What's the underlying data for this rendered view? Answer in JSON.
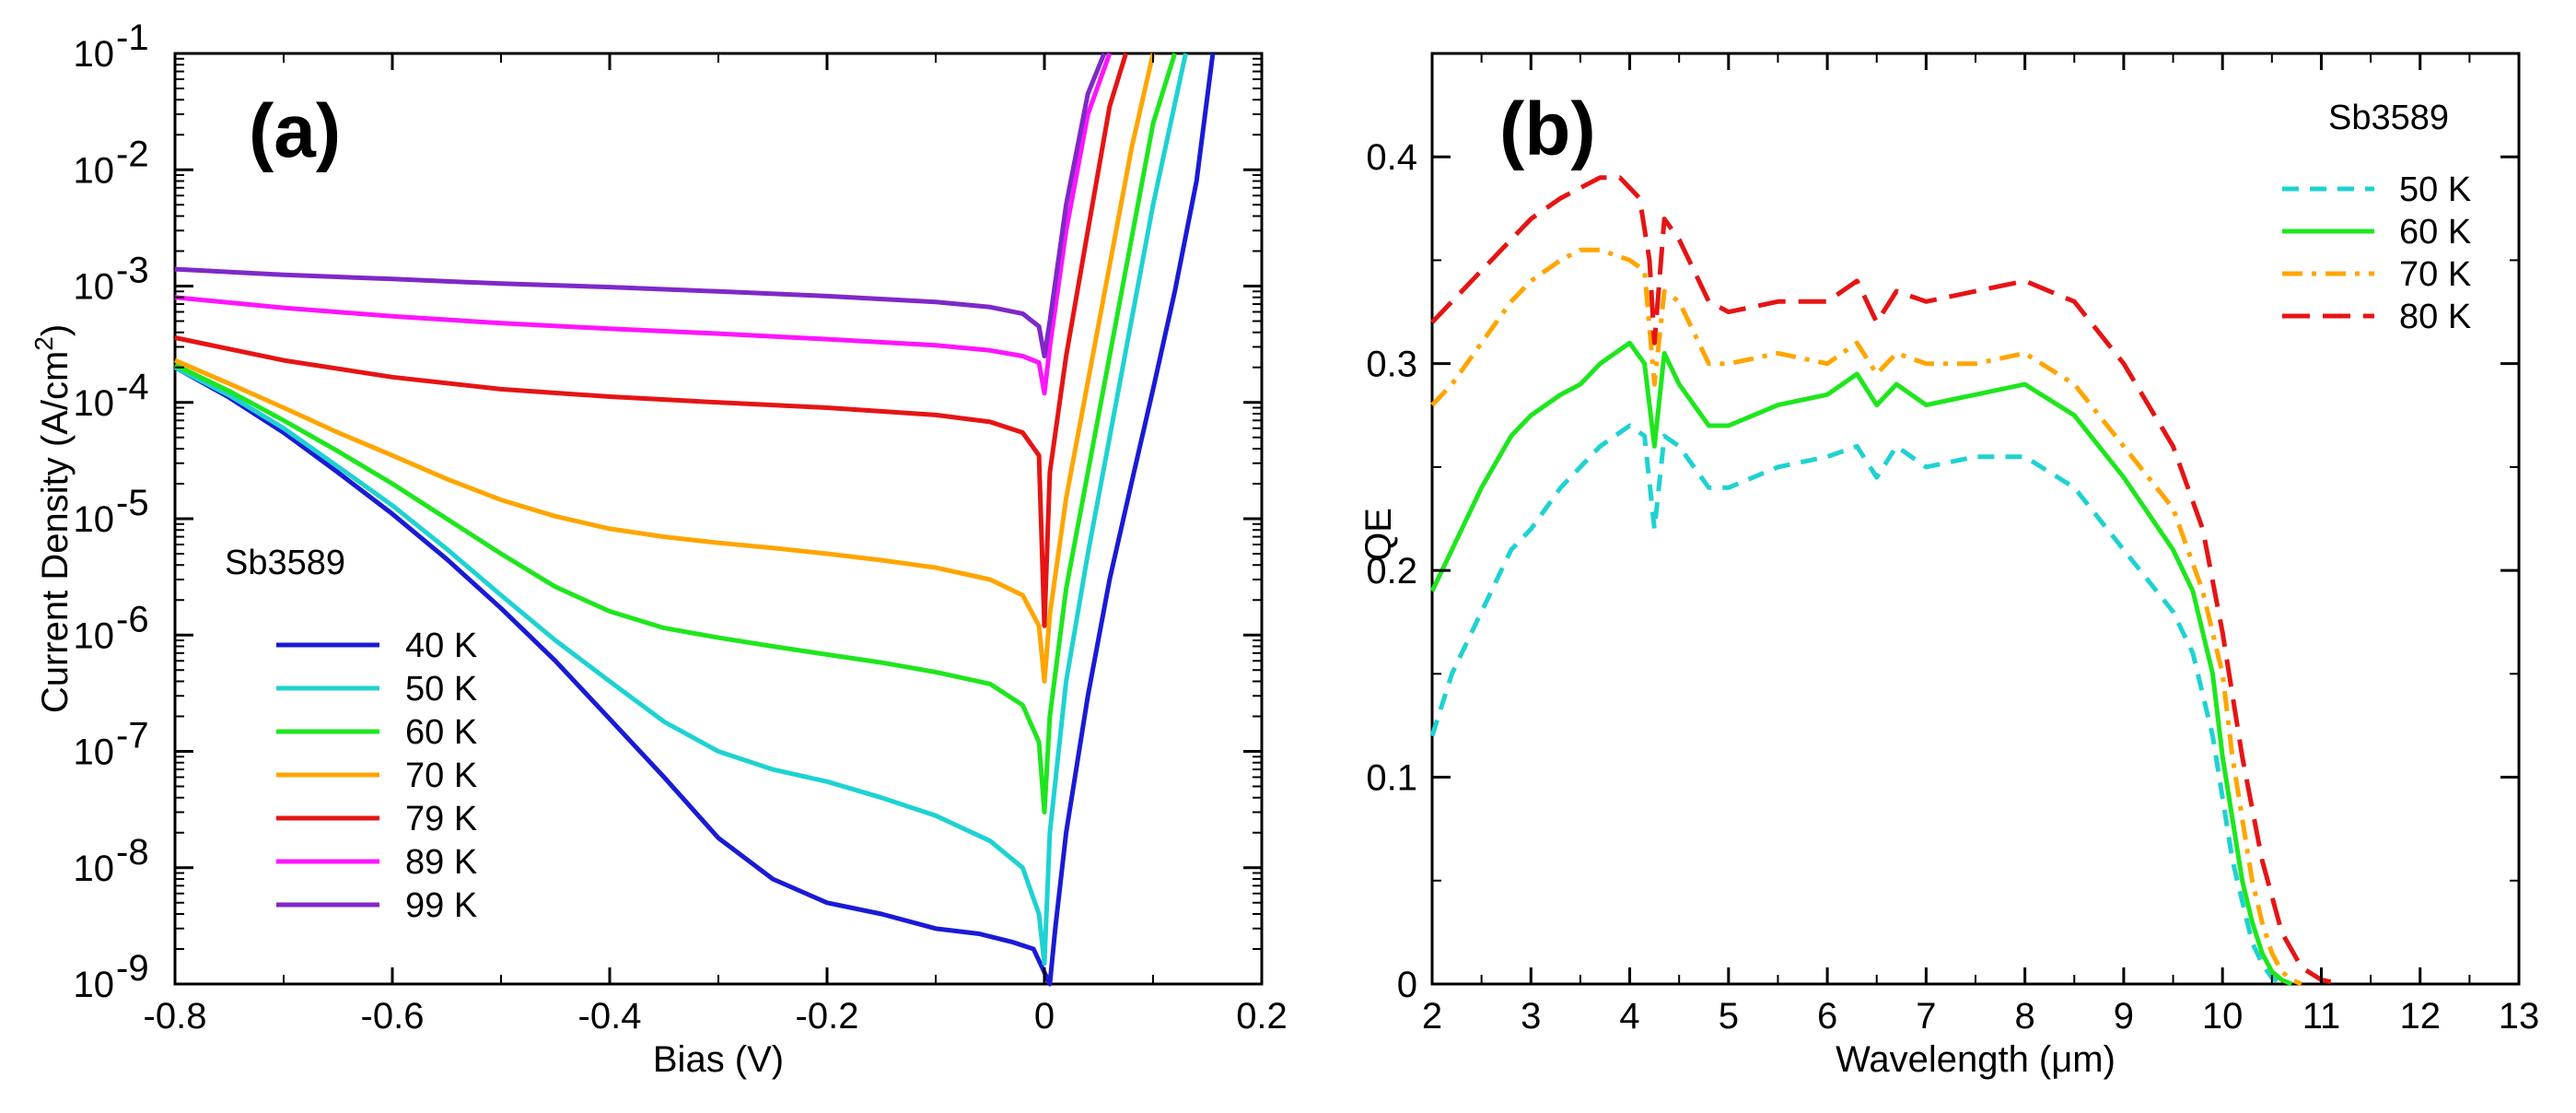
{
  "chart_data": [
    {
      "panel": "(a)",
      "type": "line",
      "xlabel": "Bias (V)",
      "ylabel": "Current Density (A/cm 2 )",
      "ylabel_main": "Current Density (A/cm",
      "ylabel_sup": "2",
      "ylabel_close": ")",
      "xlim": [
        -0.8,
        0.2
      ],
      "ylim": [
        1e-09,
        0.1
      ],
      "yscale": "log",
      "grid": false,
      "xticks": [
        "-0.8",
        "-0.6",
        "-0.4",
        "-0.2",
        "0",
        "0.2"
      ],
      "yticks": [
        {
          "base": "10",
          "exp": "-9"
        },
        {
          "base": "10",
          "exp": "-8"
        },
        {
          "base": "10",
          "exp": "-7"
        },
        {
          "base": "10",
          "exp": "-6"
        },
        {
          "base": "10",
          "exp": "-5"
        },
        {
          "base": "10",
          "exp": "-4"
        },
        {
          "base": "10",
          "exp": "-3"
        },
        {
          "base": "10",
          "exp": "-2"
        },
        {
          "base": "10",
          "exp": "-1"
        }
      ],
      "legend_title": "Sb3589",
      "legend_position": "lower-left",
      "series": [
        {
          "name": "40 K",
          "color": "#1a1ad6",
          "x": [
            -0.8,
            -0.75,
            -0.7,
            -0.65,
            -0.6,
            -0.55,
            -0.5,
            -0.45,
            -0.4,
            -0.35,
            -0.3,
            -0.25,
            -0.2,
            -0.15,
            -0.1,
            -0.06,
            -0.03,
            -0.01,
            0.005,
            0.01,
            0.02,
            0.04,
            0.06,
            0.08,
            0.1,
            0.12,
            0.14,
            0.155
          ],
          "y": [
            0.0002,
            0.00011,
            5.5e-05,
            2.5e-05,
            1.1e-05,
            4.5e-06,
            1.7e-06,
            6e-07,
            1.9e-07,
            6e-08,
            1.8e-08,
            8e-09,
            5e-09,
            4e-09,
            3e-09,
            2.7e-09,
            2.3e-09,
            2e-09,
            1e-09,
            3e-09,
            2e-08,
            3e-07,
            3e-06,
            2e-05,
            0.00013,
            0.0009,
            0.008,
            0.1
          ]
        },
        {
          "name": "50 K",
          "color": "#1ed2d2",
          "x": [
            -0.8,
            -0.75,
            -0.7,
            -0.65,
            -0.6,
            -0.55,
            -0.5,
            -0.45,
            -0.4,
            -0.35,
            -0.3,
            -0.25,
            -0.2,
            -0.15,
            -0.1,
            -0.05,
            -0.02,
            -0.005,
            0.0,
            0.005,
            0.02,
            0.04,
            0.06,
            0.08,
            0.1,
            0.13
          ],
          "y": [
            0.0002,
            0.000115,
            6e-05,
            2.8e-05,
            1.3e-05,
            5.5e-06,
            2.2e-06,
            9e-07,
            4e-07,
            1.8e-07,
            1e-07,
            7e-08,
            5.5e-08,
            4e-08,
            2.8e-08,
            1.7e-08,
            1e-08,
            4e-09,
            1.5e-09,
            2e-08,
            4e-07,
            5e-06,
            5e-05,
            0.0005,
            0.005,
            0.1
          ]
        },
        {
          "name": "60 K",
          "color": "#1ee61e",
          "x": [
            -0.8,
            -0.75,
            -0.7,
            -0.65,
            -0.6,
            -0.55,
            -0.5,
            -0.45,
            -0.4,
            -0.35,
            -0.3,
            -0.25,
            -0.2,
            -0.15,
            -0.1,
            -0.05,
            -0.02,
            -0.005,
            0.0,
            0.005,
            0.02,
            0.04,
            0.06,
            0.08,
            0.1,
            0.12
          ],
          "y": [
            0.00021,
            0.000125,
            7e-05,
            3.8e-05,
            2e-05,
            1e-05,
            5e-06,
            2.6e-06,
            1.6e-06,
            1.15e-06,
            9.5e-07,
            8e-07,
            6.8e-07,
            5.8e-07,
            4.8e-07,
            3.8e-07,
            2.5e-07,
            1.2e-07,
            3e-08,
            2e-07,
            2.5e-06,
            2.5e-05,
            0.00025,
            0.0025,
            0.025,
            0.1
          ]
        },
        {
          "name": "70 K",
          "color": "#ffa500",
          "x": [
            -0.8,
            -0.75,
            -0.7,
            -0.65,
            -0.6,
            -0.55,
            -0.5,
            -0.45,
            -0.4,
            -0.35,
            -0.3,
            -0.25,
            -0.2,
            -0.15,
            -0.1,
            -0.05,
            -0.02,
            -0.005,
            0.0,
            0.005,
            0.02,
            0.04,
            0.06,
            0.08,
            0.1
          ],
          "y": [
            0.00023,
            0.000145,
            9e-05,
            5.5e-05,
            3.5e-05,
            2.2e-05,
            1.45e-05,
            1.05e-05,
            8.2e-06,
            7e-06,
            6.2e-06,
            5.6e-06,
            5e-06,
            4.4e-06,
            3.8e-06,
            3e-06,
            2.2e-06,
            1.2e-06,
            4e-07,
            1.5e-06,
            1.5e-05,
            0.00015,
            0.0015,
            0.015,
            0.1
          ]
        },
        {
          "name": "79 K",
          "color": "#e61414",
          "x": [
            -0.8,
            -0.7,
            -0.6,
            -0.5,
            -0.4,
            -0.3,
            -0.2,
            -0.1,
            -0.05,
            -0.02,
            -0.005,
            0.0,
            0.005,
            0.02,
            0.04,
            0.06,
            0.075
          ],
          "y": [
            0.00036,
            0.00023,
            0.000165,
            0.00013,
            0.000112,
            0.0001,
            9e-05,
            7.8e-05,
            6.8e-05,
            5.5e-05,
            3.5e-05,
            1.2e-06,
            2.5e-05,
            0.00025,
            0.003,
            0.035,
            0.1
          ]
        },
        {
          "name": "89 K",
          "color": "#ff14ff",
          "x": [
            -0.8,
            -0.7,
            -0.6,
            -0.5,
            -0.4,
            -0.3,
            -0.2,
            -0.1,
            -0.05,
            -0.02,
            -0.005,
            0.0,
            0.005,
            0.02,
            0.04,
            0.06
          ],
          "y": [
            0.0008,
            0.00065,
            0.00055,
            0.00048,
            0.00043,
            0.00039,
            0.00035,
            0.00031,
            0.00028,
            0.00025,
            0.00022,
            0.00012,
            0.0003,
            0.003,
            0.03,
            0.1
          ]
        },
        {
          "name": "99 K",
          "color": "#7f28c8",
          "x": [
            -0.8,
            -0.7,
            -0.6,
            -0.5,
            -0.4,
            -0.3,
            -0.2,
            -0.1,
            -0.05,
            -0.02,
            -0.005,
            0.0,
            0.005,
            0.02,
            0.04,
            0.055
          ],
          "y": [
            0.0014,
            0.00125,
            0.00115,
            0.00105,
            0.00098,
            0.0009,
            0.00082,
            0.00073,
            0.00066,
            0.00058,
            0.00045,
            0.00025,
            0.0005,
            0.005,
            0.045,
            0.1
          ]
        }
      ]
    },
    {
      "panel": "(b)",
      "type": "line",
      "xlabel": "Wavelength (μm)",
      "ylabel": "QE",
      "xlim": [
        2,
        13
      ],
      "ylim": [
        0,
        0.45
      ],
      "grid": false,
      "xticks": [
        "2",
        "3",
        "4",
        "5",
        "6",
        "7",
        "8",
        "9",
        "10",
        "11",
        "12",
        "13"
      ],
      "yticks": [
        "0",
        "0.1",
        "0.2",
        "0.3",
        "0.4"
      ],
      "legend_title": "Sb3589",
      "legend_position": "top-right",
      "series": [
        {
          "name": "50 K",
          "color": "#1ed2d2",
          "dash": "18,12",
          "x": [
            2.0,
            2.2,
            2.5,
            2.8,
            3.0,
            3.3,
            3.5,
            3.7,
            4.0,
            4.15,
            4.25,
            4.35,
            4.5,
            4.8,
            5.0,
            5.5,
            6.0,
            6.3,
            6.5,
            6.7,
            7.0,
            7.5,
            8.0,
            8.5,
            9.0,
            9.5,
            9.7,
            9.9,
            10.0,
            10.1,
            10.2,
            10.3,
            10.4,
            10.5,
            10.6
          ],
          "y": [
            0.12,
            0.15,
            0.18,
            0.21,
            0.22,
            0.24,
            0.25,
            0.26,
            0.27,
            0.265,
            0.22,
            0.265,
            0.26,
            0.24,
            0.24,
            0.25,
            0.255,
            0.26,
            0.245,
            0.26,
            0.25,
            0.255,
            0.255,
            0.24,
            0.21,
            0.18,
            0.16,
            0.12,
            0.09,
            0.06,
            0.04,
            0.02,
            0.01,
            0.003,
            0.0
          ]
        },
        {
          "name": "60 K",
          "color": "#1ee61e",
          "dash": "",
          "x": [
            2.0,
            2.2,
            2.5,
            2.8,
            3.0,
            3.3,
            3.5,
            3.7,
            4.0,
            4.15,
            4.25,
            4.35,
            4.5,
            4.8,
            5.0,
            5.5,
            6.0,
            6.3,
            6.5,
            6.7,
            7.0,
            7.5,
            8.0,
            8.5,
            9.0,
            9.5,
            9.7,
            9.9,
            10.0,
            10.1,
            10.2,
            10.3,
            10.4,
            10.5,
            10.6,
            10.7
          ],
          "y": [
            0.19,
            0.21,
            0.24,
            0.265,
            0.275,
            0.285,
            0.29,
            0.3,
            0.31,
            0.3,
            0.26,
            0.305,
            0.29,
            0.27,
            0.27,
            0.28,
            0.285,
            0.295,
            0.28,
            0.29,
            0.28,
            0.285,
            0.29,
            0.275,
            0.245,
            0.21,
            0.19,
            0.15,
            0.11,
            0.08,
            0.05,
            0.03,
            0.015,
            0.006,
            0.002,
            0.0
          ]
        },
        {
          "name": "70 K",
          "color": "#ffa500",
          "dash": "22,10,5,10",
          "x": [
            2.0,
            2.2,
            2.5,
            2.8,
            3.0,
            3.3,
            3.5,
            3.7,
            4.0,
            4.15,
            4.25,
            4.35,
            4.5,
            4.8,
            5.0,
            5.5,
            6.0,
            6.3,
            6.5,
            6.7,
            7.0,
            7.5,
            8.0,
            8.5,
            9.0,
            9.5,
            9.8,
            10.0,
            10.1,
            10.2,
            10.3,
            10.4,
            10.5,
            10.6,
            10.7,
            10.8
          ],
          "y": [
            0.28,
            0.29,
            0.31,
            0.33,
            0.34,
            0.35,
            0.355,
            0.355,
            0.35,
            0.345,
            0.29,
            0.335,
            0.33,
            0.3,
            0.3,
            0.305,
            0.3,
            0.31,
            0.295,
            0.305,
            0.3,
            0.3,
            0.305,
            0.29,
            0.26,
            0.23,
            0.19,
            0.15,
            0.11,
            0.08,
            0.05,
            0.03,
            0.015,
            0.006,
            0.002,
            0.0
          ]
        },
        {
          "name": "80 K",
          "color": "#e61414",
          "dash": "30,14",
          "x": [
            2.0,
            2.2,
            2.5,
            2.8,
            3.0,
            3.3,
            3.5,
            3.7,
            3.9,
            4.1,
            4.2,
            4.25,
            4.35,
            4.5,
            4.8,
            5.0,
            5.5,
            6.0,
            6.3,
            6.5,
            6.7,
            7.0,
            7.5,
            8.0,
            8.5,
            9.0,
            9.5,
            9.8,
            10.0,
            10.2,
            10.4,
            10.6,
            10.8,
            11.0,
            11.2
          ],
          "y": [
            0.32,
            0.33,
            0.345,
            0.36,
            0.37,
            0.38,
            0.385,
            0.39,
            0.39,
            0.38,
            0.35,
            0.31,
            0.37,
            0.36,
            0.33,
            0.325,
            0.33,
            0.33,
            0.34,
            0.32,
            0.335,
            0.33,
            0.335,
            0.34,
            0.33,
            0.3,
            0.26,
            0.22,
            0.17,
            0.11,
            0.06,
            0.025,
            0.008,
            0.002,
            0.0
          ]
        }
      ]
    }
  ]
}
